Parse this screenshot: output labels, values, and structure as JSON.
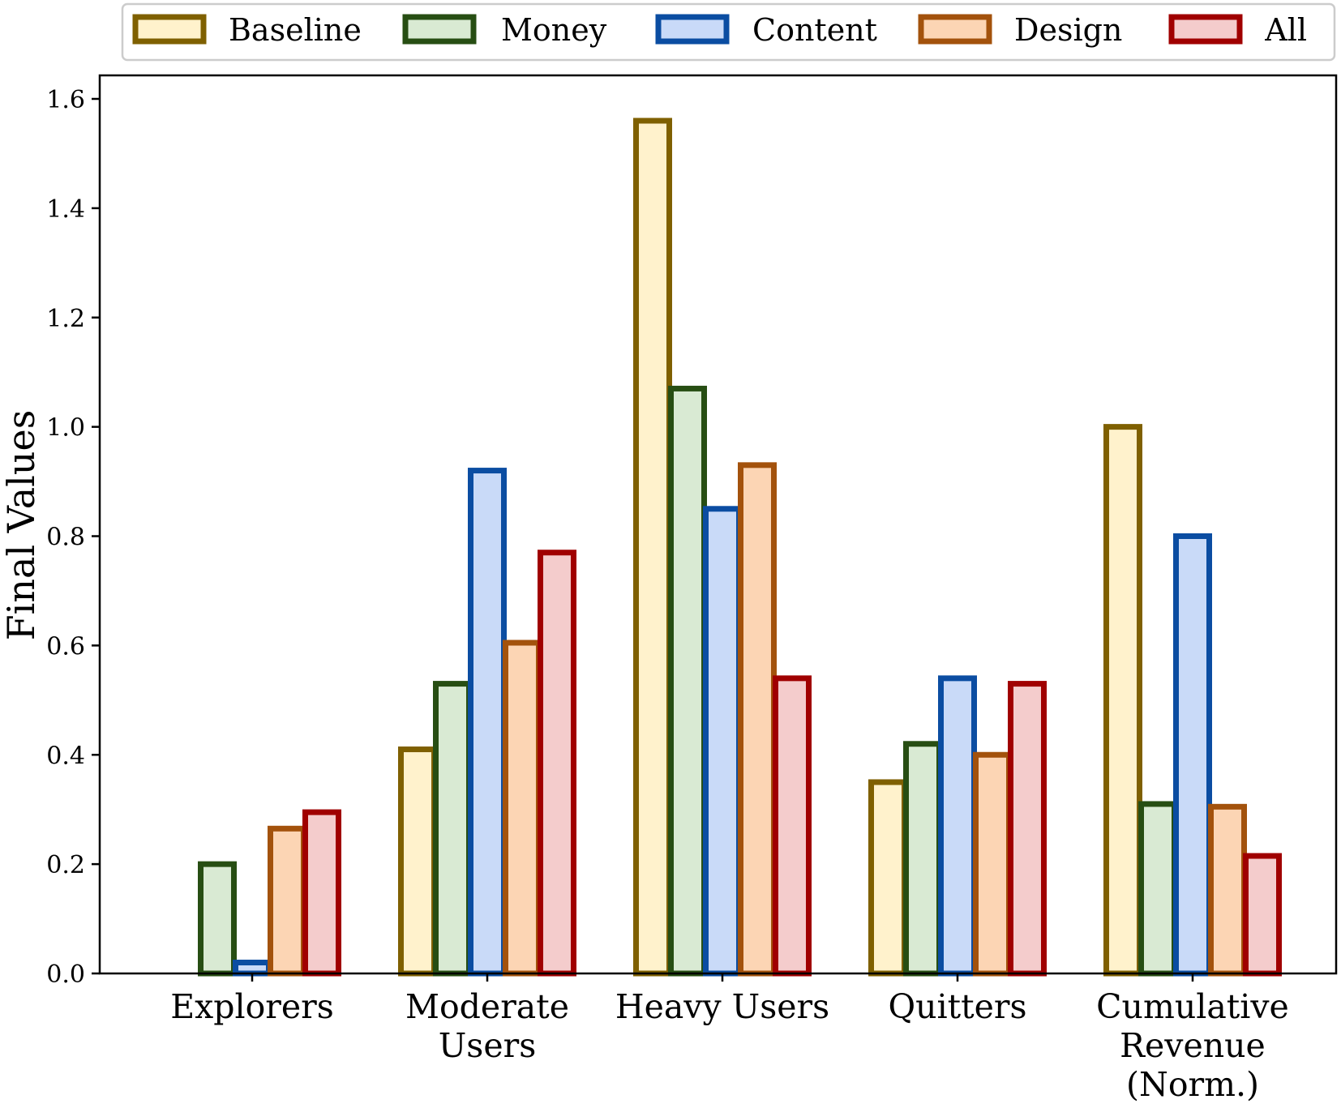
{
  "chart_data": {
    "type": "bar",
    "title": "",
    "xlabel": "",
    "ylabel": "Final Values",
    "ylim": [
      0,
      1.6
    ],
    "yticks": [
      "0.0",
      "0.2",
      "0.4",
      "0.6",
      "0.8",
      "1.0",
      "1.2",
      "1.4",
      "1.6"
    ],
    "categories": [
      [
        "Explorers"
      ],
      [
        "Moderate",
        "Users"
      ],
      [
        "Heavy Users"
      ],
      [
        "Quitters"
      ],
      [
        "Cumulative",
        "Revenue",
        "(Norm.)"
      ]
    ],
    "series": [
      {
        "name": "Baseline",
        "fill": "#fff2cc",
        "stroke": "#7f6000",
        "values": [
          0.0,
          0.41,
          1.56,
          0.35,
          1.0
        ]
      },
      {
        "name": "Money",
        "fill": "#d9ead3",
        "stroke": "#274e13",
        "values": [
          0.2,
          0.53,
          1.07,
          0.42,
          0.31
        ]
      },
      {
        "name": "Content",
        "fill": "#c9daf8",
        "stroke": "#0b4da2",
        "values": [
          0.02,
          0.92,
          0.85,
          0.54,
          0.8
        ]
      },
      {
        "name": "Design",
        "fill": "#fcd5b4",
        "stroke": "#a3520c",
        "values": [
          0.265,
          0.605,
          0.93,
          0.4,
          0.305
        ]
      },
      {
        "name": "All",
        "fill": "#f4cccc",
        "stroke": "#a00000",
        "values": [
          0.295,
          0.77,
          0.54,
          0.53,
          0.215
        ]
      }
    ],
    "legend": {
      "placement": "top-center",
      "columns": 5
    },
    "grid": false
  }
}
